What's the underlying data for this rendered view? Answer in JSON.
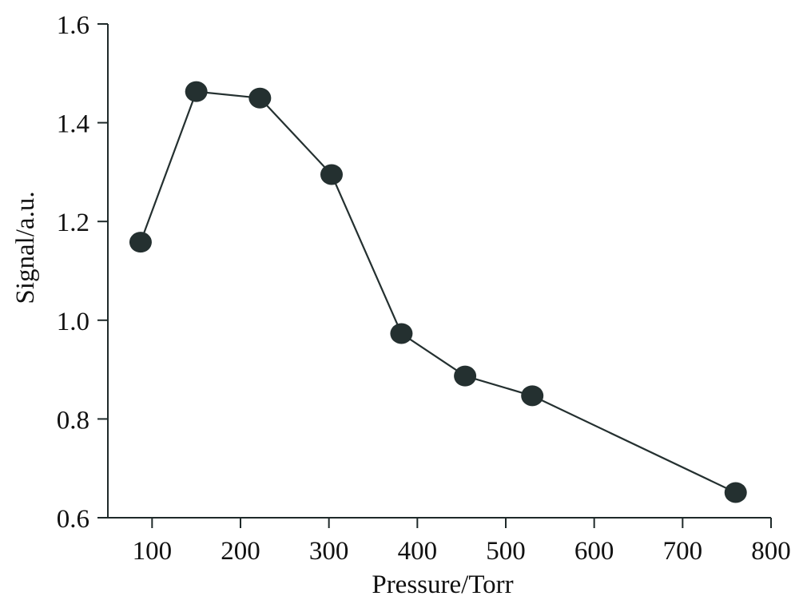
{
  "chart_data": {
    "type": "line",
    "xlabel": "Pressure/Torr",
    "ylabel": "Signal/a.u.",
    "xlim": [
      50,
      800
    ],
    "ylim": [
      0.6,
      1.6
    ],
    "x_ticks": [
      100,
      200,
      300,
      400,
      500,
      600,
      700,
      800
    ],
    "y_ticks": [
      0.6,
      0.8,
      1.0,
      1.2,
      1.4,
      1.6
    ],
    "x_tick_labels": [
      "100",
      "200",
      "300",
      "400",
      "500",
      "600",
      "700",
      "800"
    ],
    "y_tick_labels": [
      "0.6",
      "0.8",
      "1.0",
      "1.2",
      "1.4",
      "1.6"
    ],
    "grid": false,
    "series": [
      {
        "x": [
          87,
          150,
          222,
          303,
          382,
          454,
          530,
          760
        ],
        "y": [
          1.158,
          1.463,
          1.45,
          1.295,
          0.973,
          0.887,
          0.847,
          0.651
        ],
        "color": "#243030",
        "marker": "circle"
      }
    ]
  }
}
